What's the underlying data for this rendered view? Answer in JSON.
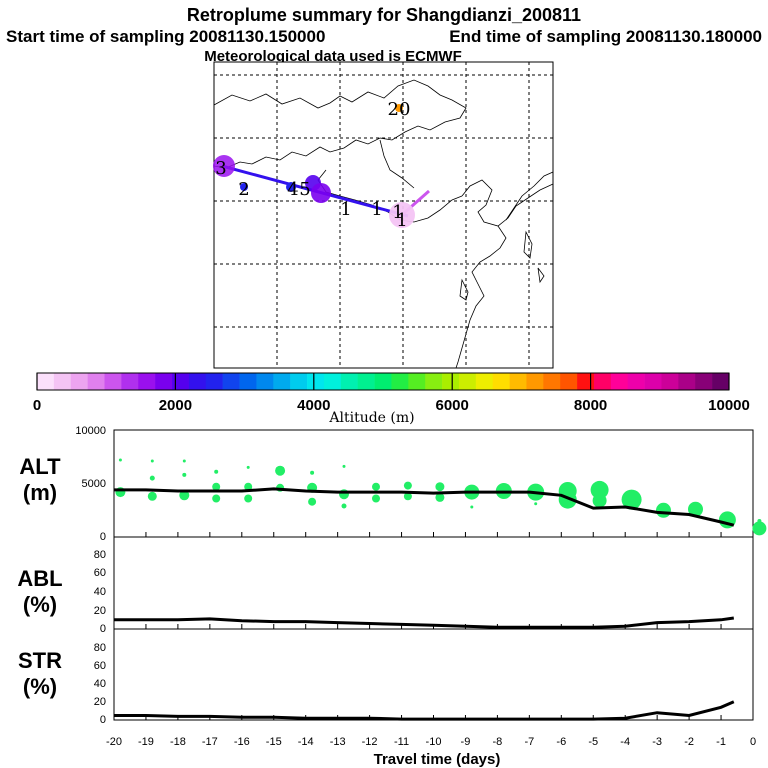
{
  "header": {
    "title": "Retroplume summary for Shangdianzi_200811",
    "start_label": "Start time of sampling 20081130.150000",
    "end_label": "End time of sampling 20081130.180000",
    "met_label": "Meteorological data used is ECMWF"
  },
  "map": {
    "labels": [
      "20",
      "3",
      "2",
      "4",
      "5",
      "1",
      "1",
      "1",
      "1"
    ],
    "trajectory_color": "#3311ee",
    "tail_color": "#cc55ee"
  },
  "colorbar": {
    "ticks": [
      "0",
      "2000",
      "4000",
      "6000",
      "8000",
      "10000"
    ],
    "label": "Altitude (m)",
    "range": [
      0,
      10000
    ],
    "colors": [
      "#fbe0fb",
      "#f4c4f4",
      "#eda4f0",
      "#e080ee",
      "#cc55ee",
      "#b030ee",
      "#9a10ee",
      "#7a00ee",
      "#5500ee",
      "#3311ee",
      "#2222ee",
      "#1144ee",
      "#0066ee",
      "#0088ee",
      "#00aaee",
      "#00ccee",
      "#00e6ee",
      "#00f0dd",
      "#00f0b0",
      "#00f090",
      "#00ee70",
      "#22ee44",
      "#55ee22",
      "#88ee11",
      "#aaee00",
      "#ccee00",
      "#eeee00",
      "#ffdd00",
      "#ffbb00",
      "#ff9900",
      "#ff7700",
      "#ff5500",
      "#ff1111",
      "#ff0066",
      "#ff0099",
      "#ee00aa",
      "#dd00aa",
      "#cc0099",
      "#aa0088",
      "#880077",
      "#660066"
    ]
  },
  "xaxis": {
    "label": "Travel time (days)",
    "ticks": [
      "-20",
      "-19",
      "-18",
      "-17",
      "-16",
      "-15",
      "-14",
      "-13",
      "-12",
      "-11",
      "-10",
      "-9",
      "-8",
      "-7",
      "-6",
      "-5",
      "-4",
      "-3",
      "-2",
      "-1",
      "0"
    ],
    "range": [
      -20,
      0
    ]
  },
  "panels": {
    "alt": {
      "label1": "ALT",
      "label2": "(m)",
      "ticks": [
        "10000",
        "5000",
        "0"
      ]
    },
    "abl": {
      "label1": "ABL",
      "label2": "(%)",
      "ticks": [
        "80",
        "60",
        "40",
        "20",
        "0"
      ]
    },
    "str": {
      "label1": "STR",
      "label2": "(%)",
      "ticks": [
        "80",
        "60",
        "40",
        "20",
        "0"
      ]
    }
  },
  "chart_data": [
    {
      "type": "line",
      "title": "ALT (m)",
      "xlabel": "Travel time (days)",
      "ylabel": "Altitude (m)",
      "ylim": [
        0,
        10000
      ],
      "xlim": [
        -20,
        0
      ],
      "x": [
        -20,
        -19,
        -18,
        -17,
        -16,
        -15,
        -14,
        -13,
        -12,
        -11,
        -10,
        -9,
        -8,
        -7,
        -6,
        -5,
        -4,
        -3,
        -2,
        -1,
        -0.6
      ],
      "values": [
        4400,
        4400,
        4300,
        4300,
        4300,
        4500,
        4300,
        4200,
        4200,
        4200,
        4100,
        4200,
        4200,
        4200,
        3900,
        2700,
        2800,
        2300,
        2100,
        1400,
        1100
      ],
      "color": "#000000",
      "clusters": {
        "color": "#22ee66",
        "points": [
          {
            "x": -19.8,
            "y": 4200,
            "r": 1.0
          },
          {
            "x": -19.8,
            "y": 7200,
            "r": 0.3
          },
          {
            "x": -18.8,
            "y": 3800,
            "r": 0.9
          },
          {
            "x": -18.8,
            "y": 5500,
            "r": 0.5
          },
          {
            "x": -18.8,
            "y": 7100,
            "r": 0.3
          },
          {
            "x": -17.8,
            "y": 3900,
            "r": 1.0
          },
          {
            "x": -17.8,
            "y": 5800,
            "r": 0.4
          },
          {
            "x": -17.8,
            "y": 7100,
            "r": 0.3
          },
          {
            "x": -16.8,
            "y": 3600,
            "r": 0.8
          },
          {
            "x": -16.8,
            "y": 4700,
            "r": 0.8
          },
          {
            "x": -16.8,
            "y": 6100,
            "r": 0.4
          },
          {
            "x": -15.8,
            "y": 3600,
            "r": 0.8
          },
          {
            "x": -15.8,
            "y": 4700,
            "r": 0.8
          },
          {
            "x": -15.8,
            "y": 6500,
            "r": 0.3
          },
          {
            "x": -14.8,
            "y": 4600,
            "r": 0.8
          },
          {
            "x": -14.8,
            "y": 6200,
            "r": 1.0
          },
          {
            "x": -13.8,
            "y": 3300,
            "r": 0.8
          },
          {
            "x": -13.8,
            "y": 4600,
            "r": 1.0
          },
          {
            "x": -13.8,
            "y": 6000,
            "r": 0.4
          },
          {
            "x": -12.8,
            "y": 2900,
            "r": 0.5
          },
          {
            "x": -12.8,
            "y": 4000,
            "r": 1.0
          },
          {
            "x": -12.8,
            "y": 6600,
            "r": 0.3
          },
          {
            "x": -11.8,
            "y": 3600,
            "r": 0.8
          },
          {
            "x": -11.8,
            "y": 4700,
            "r": 0.8
          },
          {
            "x": -10.8,
            "y": 3800,
            "r": 0.8
          },
          {
            "x": -10.8,
            "y": 4800,
            "r": 0.8
          },
          {
            "x": -9.8,
            "y": 3700,
            "r": 0.9
          },
          {
            "x": -9.8,
            "y": 4700,
            "r": 0.9
          },
          {
            "x": -8.8,
            "y": 4200,
            "r": 1.5
          },
          {
            "x": -8.8,
            "y": 2800,
            "r": 0.3
          },
          {
            "x": -7.8,
            "y": 4300,
            "r": 1.6
          },
          {
            "x": -6.8,
            "y": 4200,
            "r": 1.7
          },
          {
            "x": -6.8,
            "y": 3100,
            "r": 0.3
          },
          {
            "x": -5.8,
            "y": 4300,
            "r": 1.8
          },
          {
            "x": -5.8,
            "y": 3500,
            "r": 1.8
          },
          {
            "x": -4.8,
            "y": 4400,
            "r": 1.8
          },
          {
            "x": -4.8,
            "y": 3400,
            "r": 1.4
          },
          {
            "x": -3.8,
            "y": 3500,
            "r": 2.0
          },
          {
            "x": -2.8,
            "y": 2500,
            "r": 1.5
          },
          {
            "x": -1.8,
            "y": 2600,
            "r": 1.5
          },
          {
            "x": -0.8,
            "y": 1600,
            "r": 1.7
          },
          {
            "x": -0.8,
            "y": 1700,
            "r": 0.4
          },
          {
            "x": 0.2,
            "y": 800,
            "r": 1.4
          },
          {
            "x": 0.2,
            "y": 1500,
            "r": 0.4
          }
        ]
      }
    },
    {
      "type": "line",
      "title": "ABL (%)",
      "xlabel": "Travel time (days)",
      "ylabel": "ABL (%)",
      "ylim": [
        0,
        100
      ],
      "xlim": [
        -20,
        0
      ],
      "x": [
        -20,
        -19,
        -18,
        -17,
        -16,
        -15,
        -14,
        -13,
        -12,
        -11,
        -10,
        -9,
        -8,
        -7,
        -6,
        -5,
        -4,
        -3,
        -2,
        -1,
        -0.6
      ],
      "values": [
        10,
        10,
        10,
        11,
        9,
        8,
        8,
        7,
        6,
        5,
        4,
        3,
        2,
        2,
        2,
        2,
        3,
        7,
        8,
        10,
        12
      ]
    },
    {
      "type": "line",
      "title": "STR (%)",
      "xlabel": "Travel time (days)",
      "ylabel": "STR (%)",
      "ylim": [
        0,
        100
      ],
      "xlim": [
        -20,
        0
      ],
      "x": [
        -20,
        -19,
        -18,
        -17,
        -16,
        -15,
        -14,
        -13,
        -12,
        -11,
        -10,
        -9,
        -8,
        -7,
        -6,
        -5,
        -4,
        -3,
        -2,
        -1,
        -0.6
      ],
      "values": [
        5,
        5,
        4,
        4,
        3,
        3,
        2,
        2,
        2,
        1,
        1,
        1,
        1,
        1,
        1,
        1,
        2,
        8,
        5,
        14,
        20
      ]
    }
  ]
}
